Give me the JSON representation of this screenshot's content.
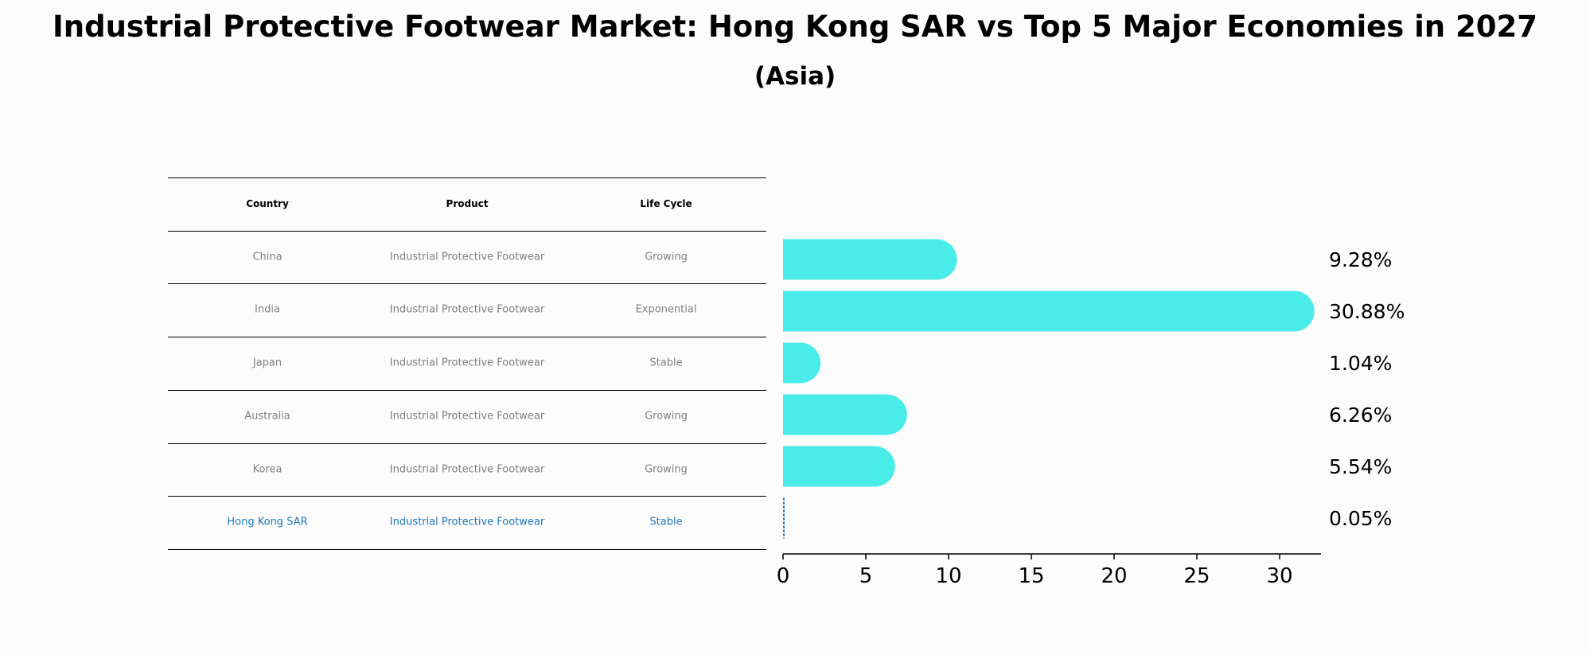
{
  "title_line1": "Industrial Protective Footwear Market: Hong Kong SAR vs Top 5 Major Economies in 2027",
  "title_line2": "(Asia)",
  "table": {
    "headers": [
      "Country",
      "Product",
      "Life Cycle"
    ],
    "rows": [
      {
        "country": "China",
        "product": "Industrial Protective Footwear",
        "life_cycle": "Growing"
      },
      {
        "country": "India",
        "product": "Industrial Protective Footwear",
        "life_cycle": "Exponential"
      },
      {
        "country": "Japan",
        "product": "Industrial Protective Footwear",
        "life_cycle": "Stable"
      },
      {
        "country": "Australia",
        "product": "Industrial Protective Footwear",
        "life_cycle": "Growing"
      },
      {
        "country": "Korea",
        "product": "Industrial Protective Footwear",
        "life_cycle": "Growing"
      },
      {
        "country": "Hong Kong SAR",
        "product": "Industrial Protective Footwear",
        "life_cycle": "Stable"
      }
    ]
  },
  "chart_data": {
    "type": "bar",
    "orientation": "horizontal",
    "categories": [
      "China",
      "India",
      "Japan",
      "Australia",
      "Korea",
      "Hong Kong SAR"
    ],
    "values": [
      9.28,
      30.88,
      1.04,
      6.26,
      5.54,
      0.05
    ],
    "value_labels": [
      "9.28%",
      "30.88%",
      "1.04%",
      "6.26%",
      "5.54%",
      "0.05%"
    ],
    "xlim": [
      0,
      32.5
    ],
    "xticks": [
      0,
      5,
      10,
      15,
      20,
      25,
      30
    ],
    "bar_color": "#4aece9",
    "highlight_color": "#1f77b4",
    "highlight_category": "Hong Kong SAR"
  }
}
